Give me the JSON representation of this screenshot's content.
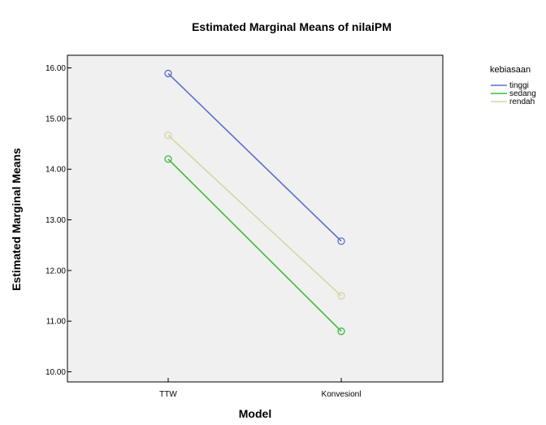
{
  "chart_data": {
    "type": "line",
    "title": "Estimated Marginal Means of nilaiPM",
    "xlabel": "Model",
    "ylabel": "Estimated Marginal Means",
    "categories": [
      "TTW",
      "Konvesionl"
    ],
    "ylim": [
      9.8,
      16.25
    ],
    "yticks": [
      "10.00",
      "11.00",
      "12.00",
      "13.00",
      "14.00",
      "15.00",
      "16.00"
    ],
    "grid": false,
    "legend": {
      "title": "kebiasaan",
      "position": "right"
    },
    "series": [
      {
        "name": "tinggi",
        "values": [
          15.89,
          12.58
        ],
        "color": "#5b6ecf"
      },
      {
        "name": "sedang",
        "values": [
          14.2,
          10.8
        ],
        "color": "#3dbb3d"
      },
      {
        "name": "rendah",
        "values": [
          14.67,
          11.5
        ],
        "color": "#d6d6a4"
      }
    ],
    "plot_background": "#f0f0f0"
  }
}
